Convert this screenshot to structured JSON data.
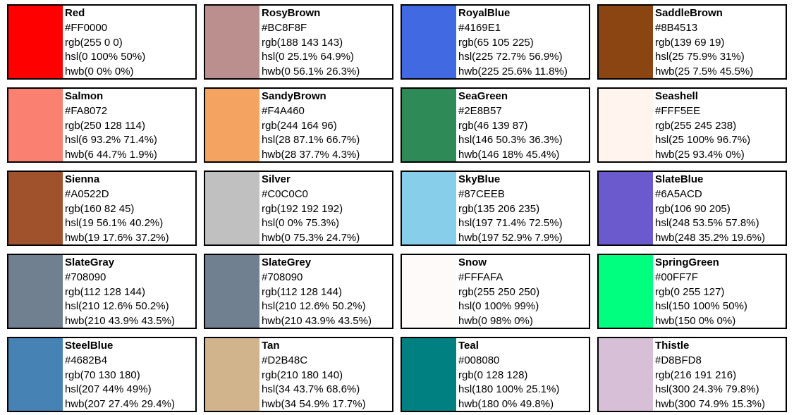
{
  "colors": [
    {
      "name": "Red",
      "hex": "#FF0000",
      "rgb": "rgb(255 0 0)",
      "hsl": "hsl(0 100% 50%)",
      "hwb": "hwb(0 0% 0%)",
      "swatch": "#FF0000"
    },
    {
      "name": "RosyBrown",
      "hex": "#BC8F8F",
      "rgb": "rgb(188 143 143)",
      "hsl": "hsl(0 25.1% 64.9%)",
      "hwb": "hwb(0 56.1% 26.3%)",
      "swatch": "#BC8F8F"
    },
    {
      "name": "RoyalBlue",
      "hex": "#4169E1",
      "rgb": "rgb(65 105 225)",
      "hsl": "hsl(225 72.7% 56.9%)",
      "hwb": "hwb(225 25.6% 11.8%)",
      "swatch": "#4169E1"
    },
    {
      "name": "SaddleBrown",
      "hex": "#8B4513",
      "rgb": "rgb(139 69 19)",
      "hsl": "hsl(25 75.9% 31%)",
      "hwb": "hwb(25 7.5% 45.5%)",
      "swatch": "#8B4513"
    },
    {
      "name": "Salmon",
      "hex": "#FA8072",
      "rgb": "rgb(250 128 114)",
      "hsl": "hsl(6 93.2% 71.4%)",
      "hwb": "hwb(6 44.7% 1.9%)",
      "swatch": "#FA8072"
    },
    {
      "name": "SandyBrown",
      "hex": "#F4A460",
      "rgb": "rgb(244 164 96)",
      "hsl": "hsl(28 87.1% 66.7%)",
      "hwb": "hwb(28 37.7% 4.3%)",
      "swatch": "#F4A460"
    },
    {
      "name": "SeaGreen",
      "hex": "#2E8B57",
      "rgb": "rgb(46 139 87)",
      "hsl": "hsl(146 50.3% 36.3%)",
      "hwb": "hwb(146 18% 45.4%)",
      "swatch": "#2E8B57"
    },
    {
      "name": "Seashell",
      "hex": "#FFF5EE",
      "rgb": "rgb(255 245 238)",
      "hsl": "hsl(25 100% 96.7%)",
      "hwb": "hwb(25 93.4% 0%)",
      "swatch": "#FFF5EE"
    },
    {
      "name": "Sienna",
      "hex": "#A0522D",
      "rgb": "rgb(160 82 45)",
      "hsl": "hsl(19 56.1% 40.2%)",
      "hwb": "hwb(19 17.6% 37.2%)",
      "swatch": "#A0522D"
    },
    {
      "name": "Silver",
      "hex": "#C0C0C0",
      "rgb": "rgb(192 192 192)",
      "hsl": "hsl(0 0% 75.3%)",
      "hwb": "hwb(0 75.3% 24.7%)",
      "swatch": "#C0C0C0"
    },
    {
      "name": "SkyBlue",
      "hex": "#87CEEB",
      "rgb": "rgb(135 206 235)",
      "hsl": "hsl(197 71.4% 72.5%)",
      "hwb": "hwb(197 52.9% 7.9%)",
      "swatch": "#87CEEB"
    },
    {
      "name": "SlateBlue",
      "hex": "#6A5ACD",
      "rgb": "rgb(106 90 205)",
      "hsl": "hsl(248 53.5% 57.8%)",
      "hwb": "hwb(248 35.2% 19.6%)",
      "swatch": "#6A5ACD"
    },
    {
      "name": "SlateGray",
      "hex": "#708090",
      "rgb": "rgb(112 128 144)",
      "hsl": "hsl(210 12.6% 50.2%)",
      "hwb": "hwb(210 43.9% 43.5%)",
      "swatch": "#708090"
    },
    {
      "name": "SlateGrey",
      "hex": "#708090",
      "rgb": "rgb(112 128 144)",
      "hsl": "hsl(210 12.6% 50.2%)",
      "hwb": "hwb(210 43.9% 43.5%)",
      "swatch": "#708090"
    },
    {
      "name": "Snow",
      "hex": "#FFFAFA",
      "rgb": "rgb(255 250 250)",
      "hsl": "hsl(0 100% 99%)",
      "hwb": "hwb(0 98% 0%)",
      "swatch": "#FFFAFA"
    },
    {
      "name": "SpringGreen",
      "hex": "#00FF7F",
      "rgb": "rgb(0 255 127)",
      "hsl": "hsl(150 100% 50%)",
      "hwb": "hwb(150 0% 0%)",
      "swatch": "#00FF7F"
    },
    {
      "name": "SteelBlue",
      "hex": "#4682B4",
      "rgb": "rgb(70 130 180)",
      "hsl": "hsl(207 44% 49%)",
      "hwb": "hwb(207 27.4% 29.4%)",
      "swatch": "#4682B4"
    },
    {
      "name": "Tan",
      "hex": "#D2B48C",
      "rgb": "rgb(210 180 140)",
      "hsl": "hsl(34 43.7% 68.6%)",
      "hwb": "hwb(34 54.9% 17.7%)",
      "swatch": "#D2B48C"
    },
    {
      "name": "Teal",
      "hex": "#008080",
      "rgb": "rgb(0 128 128)",
      "hsl": "hsl(180 100% 25.1%)",
      "hwb": "hwb(180 0% 49.8%)",
      "swatch": "#008080"
    },
    {
      "name": "Thistle",
      "hex": "#D8BFD8",
      "rgb": "rgb(216 191 216)",
      "hsl": "hsl(300 24.3% 79.8%)",
      "hwb": "hwb(300 74.9% 15.3%)",
      "swatch": "#D8BFD8"
    }
  ]
}
